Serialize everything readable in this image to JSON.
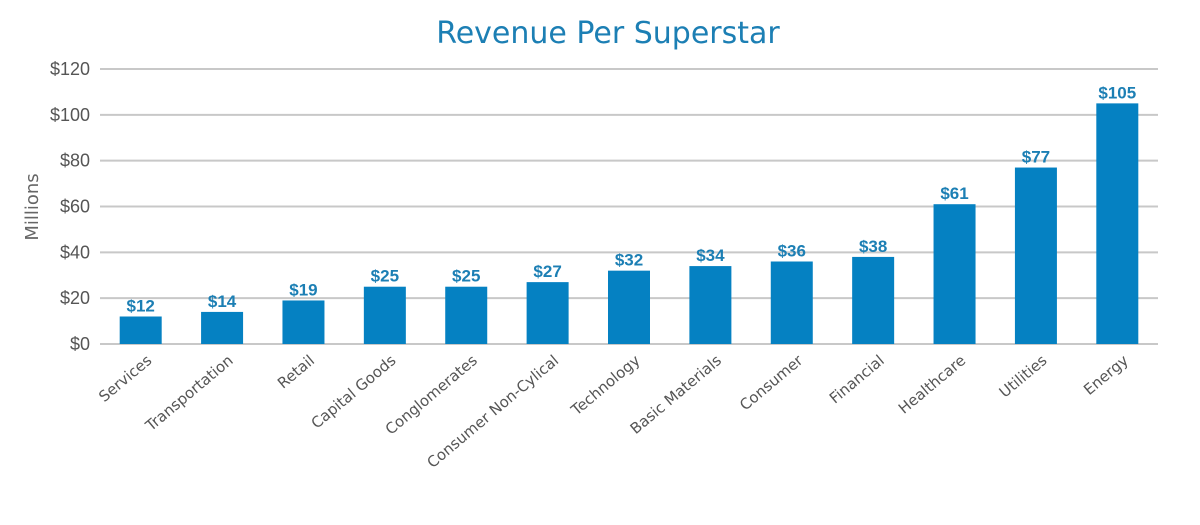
{
  "chart_data": {
    "type": "bar",
    "title": "Revenue Per Superstar",
    "ylabel": "Millions",
    "xlabel": "",
    "categories": [
      "Services",
      "Transportation",
      "Retail",
      "Capital Goods",
      "Conglomerates",
      "Consumer Non-Cylical",
      "Technology",
      "Basic Materials",
      "Consumer",
      "Financial",
      "Healthcare",
      "Utilities",
      "Energy"
    ],
    "values": [
      12,
      14,
      19,
      25,
      25,
      27,
      32,
      34,
      36,
      38,
      61,
      77,
      105
    ],
    "data_labels": [
      "$12",
      "$14",
      "$19",
      "$25",
      "$25",
      "$27",
      "$32",
      "$34",
      "$36",
      "$38",
      "$61",
      "$77",
      "$105"
    ],
    "ylim": [
      0,
      120
    ],
    "yticks": [
      0,
      20,
      40,
      60,
      80,
      100,
      120
    ],
    "ytick_labels": [
      "$0",
      "$20",
      "$40",
      "$60",
      "$80",
      "$100",
      "$120"
    ],
    "grid": true,
    "legend": "none",
    "colors": {
      "bar": "#0581c2",
      "title": "#1c7fb4",
      "data_label": "#1c7fb4",
      "grid": "#c8c8c8"
    }
  }
}
